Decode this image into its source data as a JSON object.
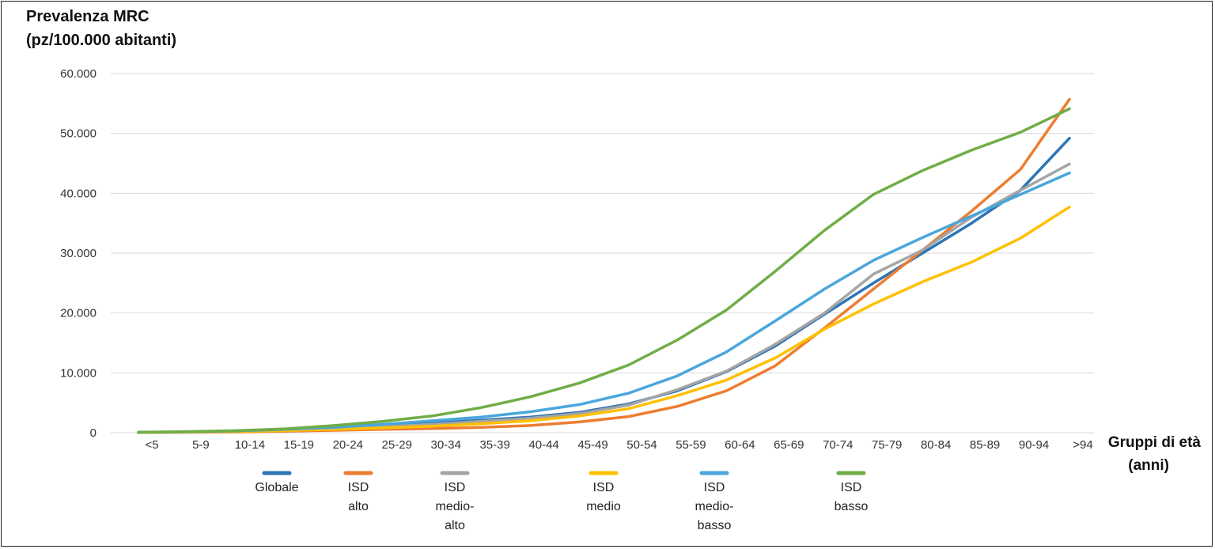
{
  "chart_data": {
    "type": "line",
    "title": "",
    "ylabel": [
      "Prevalenza MRC",
      "(pz/100.000 abitanti)"
    ],
    "xlabel": [
      "Gruppi di età",
      "(anni)"
    ],
    "ylim": [
      0,
      60000
    ],
    "yticks": [
      {
        "value": 0,
        "label": "0"
      },
      {
        "value": 10000,
        "label": "10.000"
      },
      {
        "value": 20000,
        "label": "20.000"
      },
      {
        "value": 30000,
        "label": "30.000"
      },
      {
        "value": 40000,
        "label": "40.000"
      },
      {
        "value": 50000,
        "label": "50.000"
      },
      {
        "value": 60000,
        "label": "60.000"
      }
    ],
    "grid": true,
    "categories": [
      "<5",
      "5-9",
      "10-14",
      "15-19",
      "20-24",
      "25-29",
      "30-34",
      "35-39",
      "40-44",
      "45-49",
      "50-54",
      "55-59",
      "60-64",
      "65-69",
      "70-74",
      "75-79",
      "80-84",
      "85-89",
      "90-94",
      ">94"
    ],
    "series": [
      {
        "name": "Globale",
        "legend_lines": [
          "Globale"
        ],
        "color": "#2e75b6",
        "values": [
          50,
          120,
          250,
          500,
          800,
          1200,
          1600,
          2100,
          2600,
          3400,
          4800,
          7000,
          10200,
          14500,
          19800,
          25000,
          30000,
          35000,
          40500,
          49200
        ]
      },
      {
        "name": "ISD alto",
        "legend_lines": [
          "ISD",
          "alto"
        ],
        "color": "#ed7d31",
        "values": [
          20,
          60,
          120,
          250,
          400,
          550,
          700,
          900,
          1200,
          1800,
          2700,
          4400,
          7000,
          11200,
          17500,
          24000,
          30500,
          37000,
          44000,
          55700
        ]
      },
      {
        "name": "ISD medio-alto",
        "legend_lines": [
          "ISD",
          "medio-",
          "alto"
        ],
        "color": "#a5a5a5",
        "values": [
          50,
          120,
          250,
          450,
          700,
          1000,
          1400,
          1900,
          2400,
          3200,
          4600,
          7200,
          10300,
          14800,
          20000,
          26500,
          30500,
          36000,
          40500,
          44900
        ]
      },
      {
        "name": "ISD medio",
        "legend_lines": [
          "ISD",
          "medio"
        ],
        "color": "#ffc000",
        "values": [
          40,
          100,
          200,
          350,
          550,
          800,
          1100,
          1500,
          2000,
          2800,
          4000,
          6200,
          8800,
          12500,
          17300,
          21500,
          25200,
          28500,
          32500,
          37700
        ]
      },
      {
        "name": "ISD medio-basso",
        "legend_lines": [
          "ISD",
          "medio-",
          "basso"
        ],
        "color": "#4aa6dd",
        "values": [
          60,
          150,
          300,
          550,
          900,
          1400,
          2000,
          2600,
          3500,
          4700,
          6600,
          9500,
          13500,
          18700,
          24000,
          28800,
          32600,
          36200,
          39800,
          43400
        ]
      },
      {
        "name": "ISD basso",
        "legend_lines": [
          "ISD",
          "basso"
        ],
        "color": "#70ad47",
        "values": [
          80,
          180,
          350,
          650,
          1200,
          1900,
          2800,
          4200,
          6000,
          8300,
          11300,
          15500,
          20500,
          27000,
          33800,
          39800,
          43800,
          47200,
          50200,
          54100
        ]
      }
    ]
  }
}
